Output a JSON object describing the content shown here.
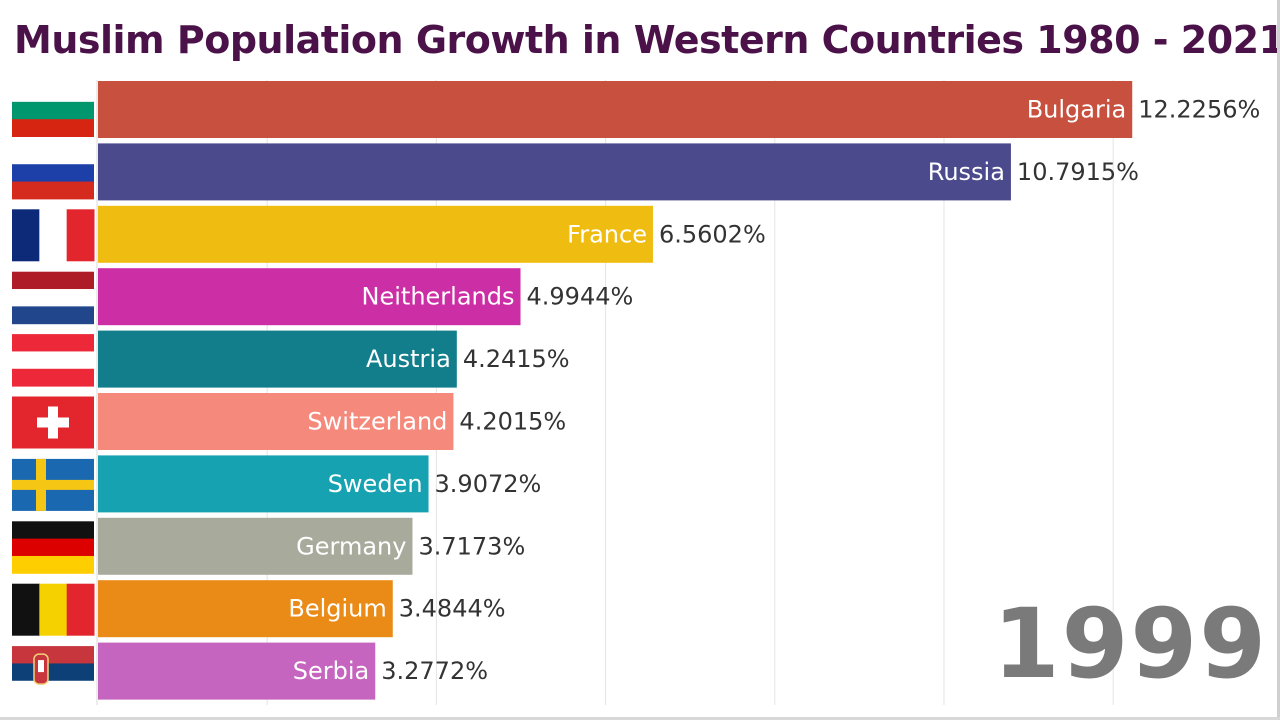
{
  "chart_data": {
    "type": "bar",
    "orientation": "horizontal",
    "title": "Muslim Population Growth in Western Countries 1980 - 2021",
    "year": "1999",
    "xlim": [
      0,
      12.4
    ],
    "grid": true,
    "categories": [
      "Bulgaria",
      "Russia",
      "France",
      "Neitherlands",
      "Austria",
      "Switzerland",
      "Sweden",
      "Germany",
      "Belgium",
      "Serbia"
    ],
    "values": [
      12.2256,
      10.7915,
      6.5602,
      4.9944,
      4.2415,
      4.2015,
      3.9072,
      3.7173,
      3.4844,
      3.2772
    ],
    "value_labels": [
      "12.2256%",
      "10.7915%",
      "6.5602%",
      "4.9944%",
      "4.2415%",
      "4.2015%",
      "3.9072%",
      "3.7173%",
      "3.4844%",
      "3.2772%"
    ],
    "colors": [
      "#c8503f",
      "#4b4a8c",
      "#efbc12",
      "#cc2ea6",
      "#127e8c",
      "#f58a7c",
      "#17a2b1",
      "#a8ab9c",
      "#eb8b17",
      "#c565bf"
    ],
    "flags": [
      "bulgaria-flag",
      "russia-flag",
      "france-flag",
      "netherlands-flag",
      "austria-flag",
      "switzerland-flag",
      "sweden-flag",
      "germany-flag",
      "belgium-flag",
      "serbia-flag"
    ]
  }
}
